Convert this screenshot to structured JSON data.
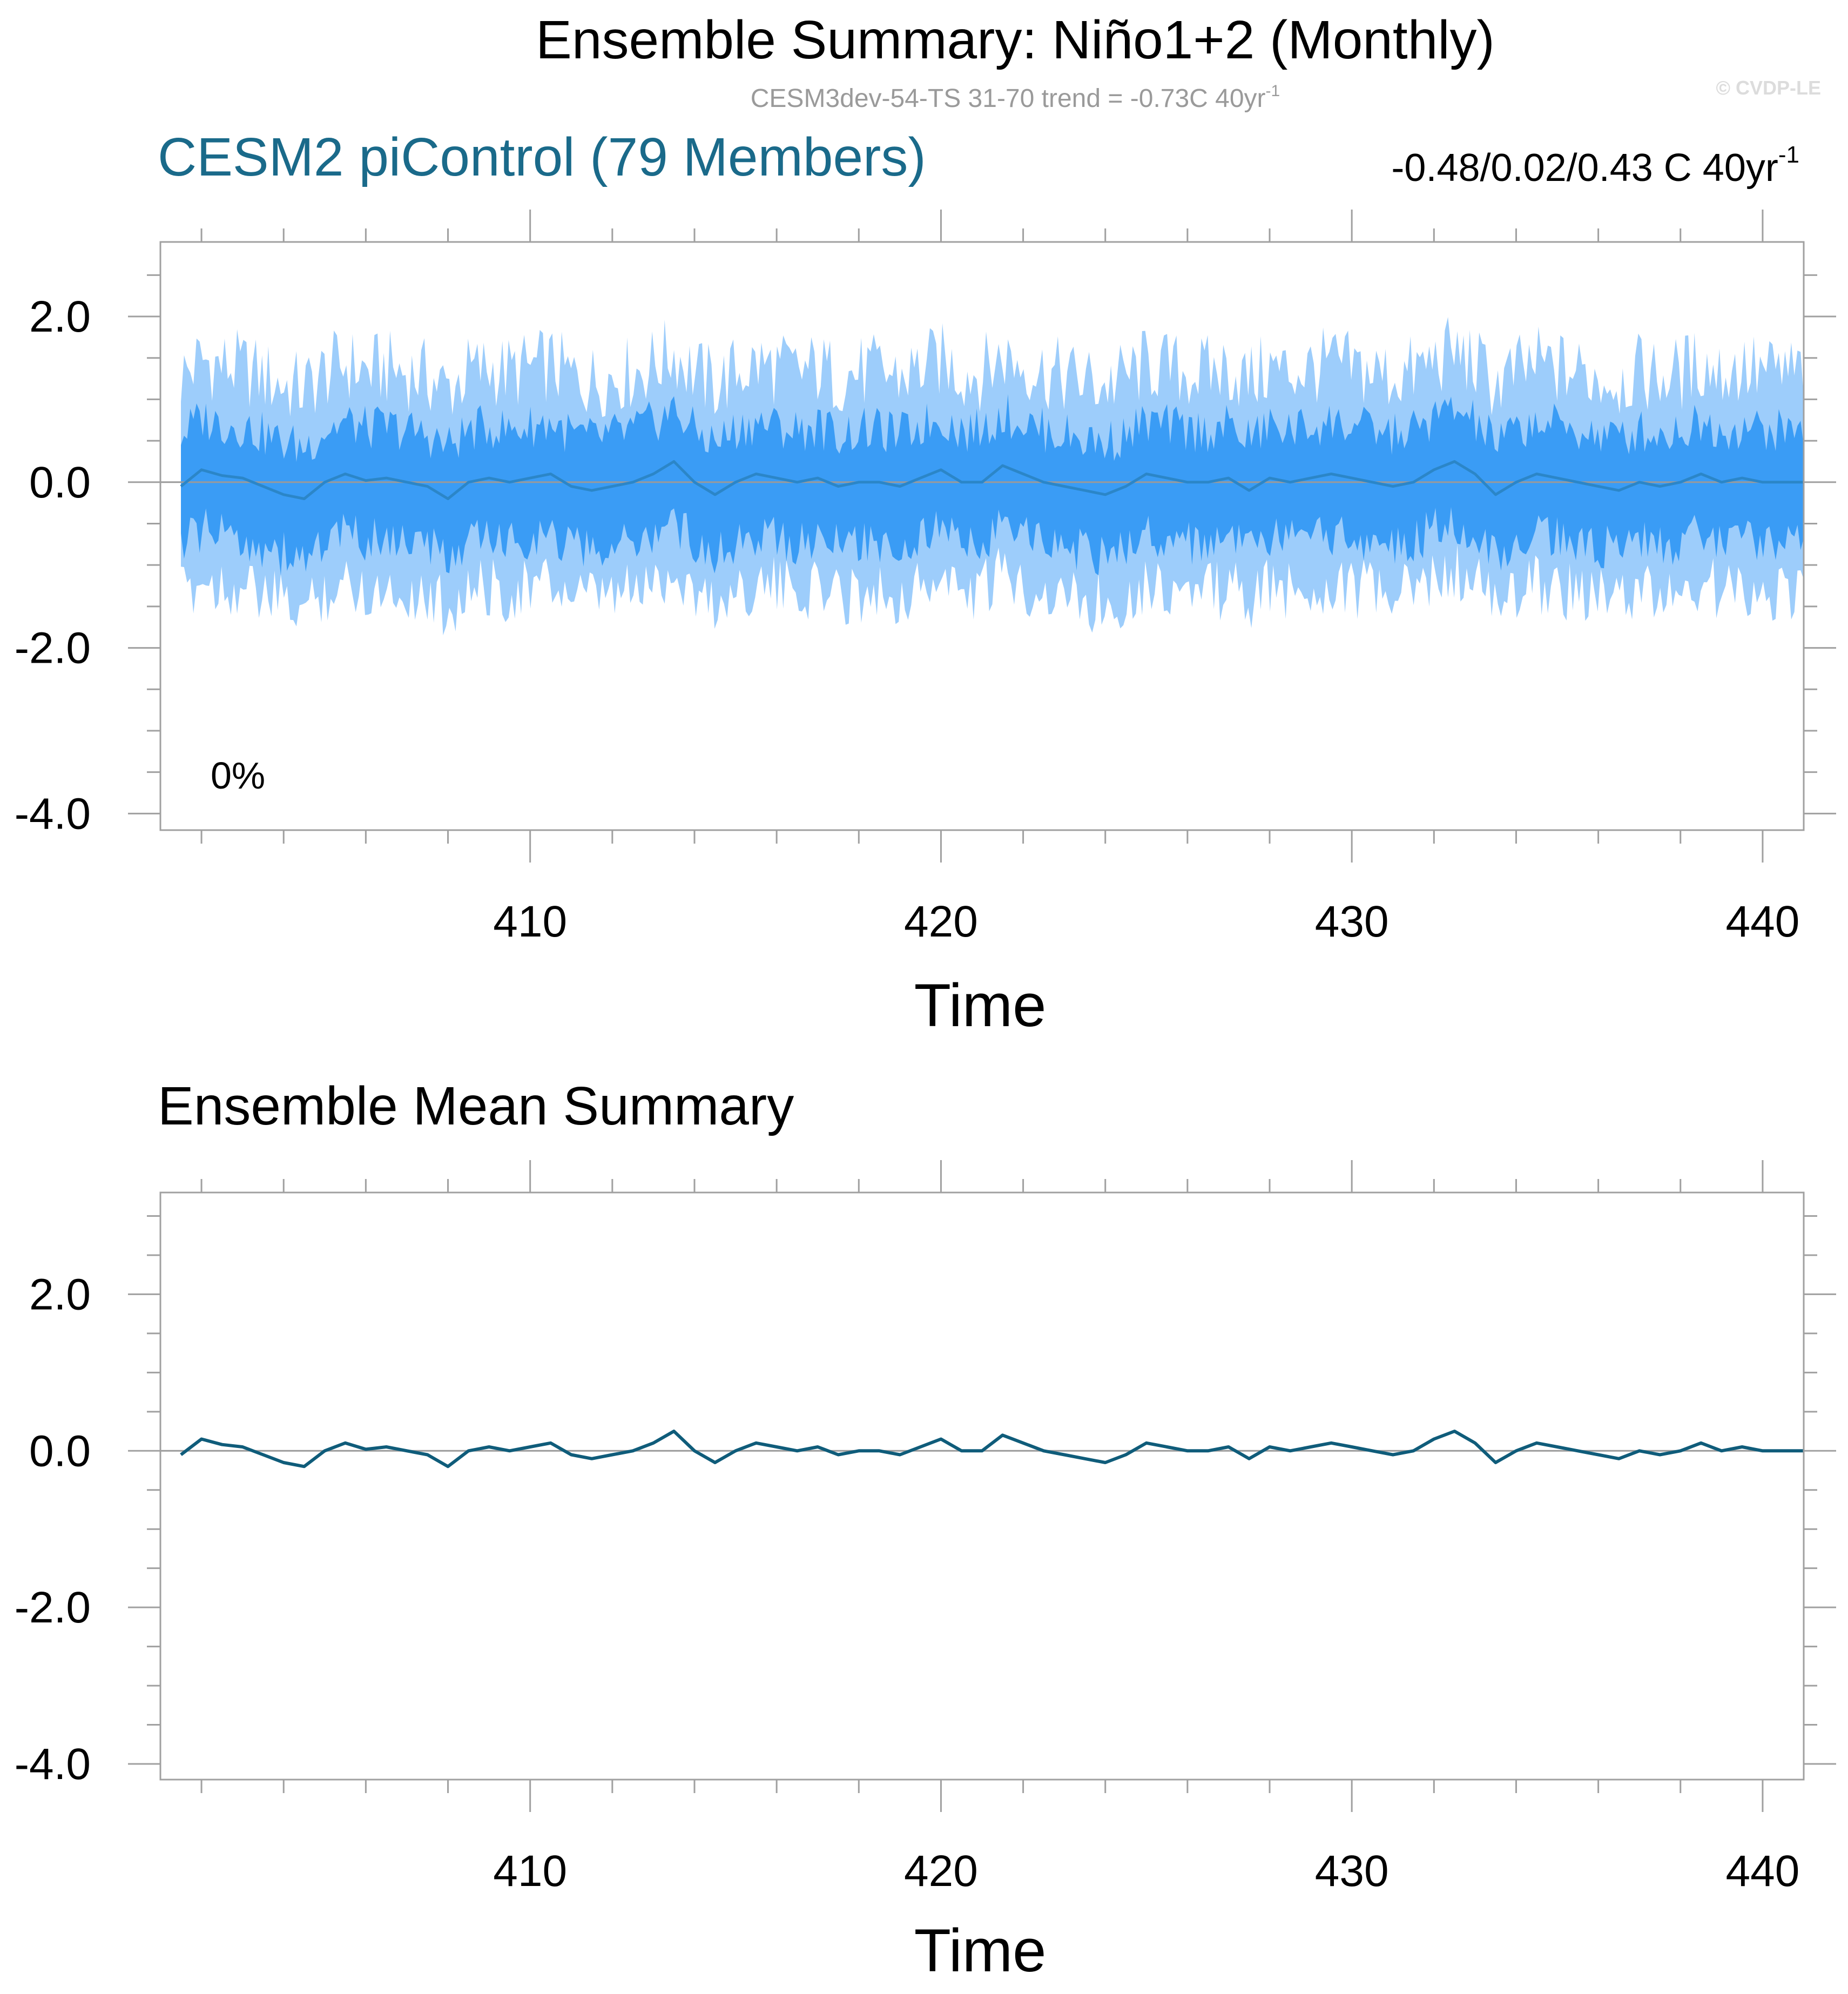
{
  "page": {
    "title": "Ensemble Summary: Niño1+2 (Monthly)",
    "subtitle_main": "CESM3dev-54-TS 31-70 trend = -0.73C 40yr",
    "subtitle_exp": "-1",
    "copyright": "© CVDP-LE"
  },
  "chart_data": [
    {
      "type": "area",
      "panel": "top",
      "title": "CESM2 piControl (79 Members)",
      "title_color": "#1a6a8a",
      "right_label_main": "-0.48/0.02/0.43 C 40yr",
      "right_label_exp": "-1",
      "inset_label": "0%",
      "xlabel": "Time",
      "ylabel": "",
      "xlim": [
        401,
        441
      ],
      "ylim": [
        -4.2,
        2.9
      ],
      "xticks": [
        410,
        420,
        430,
        440
      ],
      "yticks": [
        2.0,
        0.0,
        -2.0,
        -4.0
      ],
      "ytick_labels": [
        "2.0",
        "0.0",
        "-2.0",
        "-4.0"
      ],
      "zero_line": true,
      "grid": false,
      "colors": {
        "outer_band": "#9dcdfb",
        "inner_band": "#3a9cf5",
        "mean_line": "#2b86c8"
      },
      "series": [
        {
          "x": [
            401.5,
            402,
            402.5,
            403,
            403.5,
            404,
            404.5,
            405,
            405.5,
            406,
            406.5,
            407,
            407.5,
            408,
            408.5,
            409,
            409.5,
            410,
            410.5,
            411,
            411.5,
            412,
            412.5,
            413,
            413.5,
            414,
            414.5,
            415,
            415.5,
            416,
            416.5,
            417,
            417.5,
            418,
            418.5,
            419,
            419.5,
            420,
            420.5,
            421,
            421.5,
            422,
            422.5,
            423,
            423.5,
            424,
            424.5,
            425,
            425.5,
            426,
            426.5,
            427,
            427.5,
            428,
            428.5,
            429,
            429.5,
            430,
            430.5,
            431,
            431.5,
            432,
            432.5,
            433,
            433.5,
            434,
            434.5,
            435,
            435.5,
            436,
            436.5,
            437,
            437.5,
            438,
            438.5,
            439,
            439.5,
            440,
            440.5,
            441
          ],
          "y": [
            -0.05,
            0.15,
            0.08,
            0.05,
            -0.05,
            -0.15,
            -0.2,
            0.0,
            0.1,
            0.02,
            0.05,
            0.0,
            -0.05,
            -0.2,
            0.0,
            0.05,
            0.0,
            0.05,
            0.1,
            -0.05,
            -0.1,
            -0.05,
            0.0,
            0.1,
            0.25,
            0.0,
            -0.15,
            0.0,
            0.1,
            0.05,
            0.0,
            0.05,
            -0.05,
            0.0,
            0.0,
            -0.05,
            0.05,
            0.15,
            0.0,
            0.0,
            0.2,
            0.1,
            0.0,
            -0.05,
            -0.1,
            -0.15,
            -0.05,
            0.1,
            0.05,
            0.0,
            0.0,
            0.05,
            -0.1,
            0.05,
            0.0,
            0.05,
            0.1,
            0.05,
            0.0,
            -0.05,
            0.0,
            0.15,
            0.25,
            0.1,
            -0.15,
            0.0,
            0.1,
            0.05,
            0.0,
            -0.05,
            -0.1,
            0.0,
            -0.05,
            0.0,
            0.1,
            0.0,
            0.05,
            0.0,
            0.0,
            0.0
          ]
        }
      ]
    },
    {
      "type": "line",
      "panel": "bottom",
      "title": "Ensemble Mean Summary",
      "xlabel": "Time",
      "ylabel": "",
      "xlim": [
        401,
        441
      ],
      "ylim": [
        -4.2,
        3.3
      ],
      "xticks": [
        410,
        420,
        430,
        440
      ],
      "yticks": [
        2.0,
        0.0,
        -2.0,
        -4.0
      ],
      "ytick_labels": [
        "2.0",
        "0.0",
        "-2.0",
        "-4.0"
      ],
      "zero_line": true,
      "grid": false,
      "colors": {
        "mean_line": "#0f5c7a"
      },
      "series": [
        {
          "x": [
            401.5,
            402,
            402.5,
            403,
            403.5,
            404,
            404.5,
            405,
            405.5,
            406,
            406.5,
            407,
            407.5,
            408,
            408.5,
            409,
            409.5,
            410,
            410.5,
            411,
            411.5,
            412,
            412.5,
            413,
            413.5,
            414,
            414.5,
            415,
            415.5,
            416,
            416.5,
            417,
            417.5,
            418,
            418.5,
            419,
            419.5,
            420,
            420.5,
            421,
            421.5,
            422,
            422.5,
            423,
            423.5,
            424,
            424.5,
            425,
            425.5,
            426,
            426.5,
            427,
            427.5,
            428,
            428.5,
            429,
            429.5,
            430,
            430.5,
            431,
            431.5,
            432,
            432.5,
            433,
            433.5,
            434,
            434.5,
            435,
            435.5,
            436,
            436.5,
            437,
            437.5,
            438,
            438.5,
            439,
            439.5,
            440,
            440.5,
            441
          ],
          "y": [
            -0.05,
            0.15,
            0.08,
            0.05,
            -0.05,
            -0.15,
            -0.2,
            0.0,
            0.1,
            0.02,
            0.05,
            0.0,
            -0.05,
            -0.2,
            0.0,
            0.05,
            0.0,
            0.05,
            0.1,
            -0.05,
            -0.1,
            -0.05,
            0.0,
            0.1,
            0.25,
            0.0,
            -0.15,
            0.0,
            0.1,
            0.05,
            0.0,
            0.05,
            -0.05,
            0.0,
            0.0,
            -0.05,
            0.05,
            0.15,
            0.0,
            0.0,
            0.2,
            0.1,
            0.0,
            -0.05,
            -0.1,
            -0.15,
            -0.05,
            0.1,
            0.05,
            0.0,
            0.0,
            0.05,
            -0.1,
            0.05,
            0.0,
            0.05,
            0.1,
            0.05,
            0.0,
            -0.05,
            0.0,
            0.15,
            0.25,
            0.1,
            -0.15,
            0.0,
            0.1,
            0.05,
            0.0,
            -0.05,
            -0.1,
            0.0,
            -0.05,
            0.0,
            0.1,
            0.0,
            0.05,
            0.0,
            0.0,
            0.0
          ]
        }
      ]
    }
  ]
}
